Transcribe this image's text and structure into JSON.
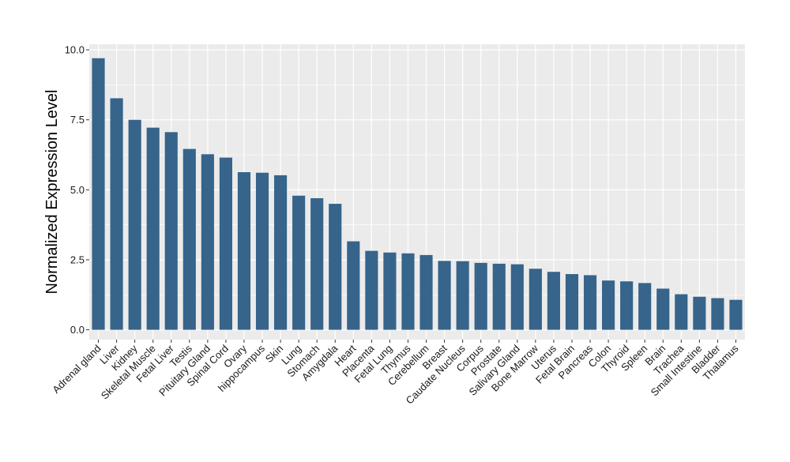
{
  "chart_data": {
    "type": "bar",
    "title": "",
    "xlabel": "",
    "ylabel": "Normalized Expression Level",
    "ylim": [
      -0.35,
      10.2
    ],
    "yticks": [
      0.0,
      2.5,
      5.0,
      7.5,
      10.0
    ],
    "ytick_labels": [
      "0.0",
      "2.5",
      "5.0",
      "7.5",
      "10.0"
    ],
    "grid": true,
    "legend": "none",
    "bar_color": "#36648b",
    "panel_color": "#ebebeb",
    "grid_color": "#ffffff",
    "categories": [
      "Adrenal gland",
      "Liver",
      "Kidney",
      "Skeletal Muscle",
      "Fetal Liver",
      "Testis",
      "Pituitary Gland",
      "Spinal Cord",
      "Ovary",
      "hippocampus",
      "Skin",
      "Lung",
      "Stomach",
      "Amygdala",
      "Heart",
      "Placenta",
      "Fetal Lung",
      "Thymus",
      "Cerebellum",
      "Breast",
      "Caudate Nucleus",
      "Corpus",
      "Prostate",
      "Salivary Gland",
      "Bone Marrow",
      "Uterus",
      "Fetal Brain",
      "Pancreas",
      "Colon",
      "Thyroid",
      "Spleen",
      "Brain",
      "Trachea",
      "Small Intestine",
      "Bladder",
      "Thalamus"
    ],
    "values": [
      9.7,
      8.27,
      7.5,
      7.22,
      7.06,
      6.46,
      6.27,
      6.15,
      5.63,
      5.61,
      5.52,
      4.79,
      4.7,
      4.5,
      3.16,
      2.82,
      2.76,
      2.73,
      2.67,
      2.46,
      2.45,
      2.39,
      2.36,
      2.34,
      2.18,
      2.07,
      1.99,
      1.95,
      1.76,
      1.73,
      1.67,
      1.47,
      1.27,
      1.18,
      1.13,
      1.07
    ]
  }
}
